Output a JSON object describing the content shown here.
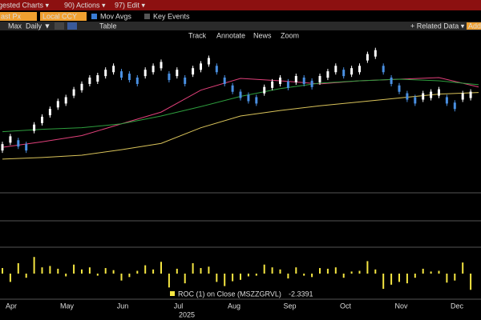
{
  "toolbar": {
    "items": [
      "gested Charts ▾",
      "90) Actions ▾",
      "97) Edit ▾"
    ]
  },
  "options": {
    "field": "ast Px",
    "currency": "Local CCY",
    "mov_avgs": "Mov Avgs",
    "key_events": "Key Events"
  },
  "controls": {
    "range": "Max",
    "period": "Daily ▼",
    "table": "Table",
    "related": "+ Related Data ▾",
    "add": "Add"
  },
  "tools": [
    "Track",
    "Annotate",
    "News",
    "Zoom"
  ],
  "chart_data": {
    "type": "candlestick",
    "x_labels": [
      "Apr",
      "May",
      "Jun",
      "Jul",
      "Aug",
      "Sep",
      "Oct",
      "Nov",
      "Dec"
    ],
    "year": "2025",
    "xlim": [
      0,
      60
    ],
    "ylim": [
      0,
      190
    ],
    "close": {
      "up_color": "#ffffff",
      "down_color": "#4a90e2",
      "values": [
        55,
        65,
        60,
        55,
        80,
        90,
        100,
        110,
        115,
        125,
        132,
        140,
        143,
        150,
        155,
        148,
        145,
        140,
        150,
        155,
        160,
        145,
        150,
        140,
        152,
        158,
        165,
        155,
        140,
        130,
        122,
        118,
        115,
        128,
        135,
        140,
        135,
        142,
        140,
        136,
        142,
        148,
        155,
        150,
        152,
        155,
        170,
        175,
        155,
        140,
        130,
        120,
        115,
        120,
        122,
        125,
        115,
        108,
        120,
        122
      ]
    },
    "moving_averages": {
      "x": [
        0,
        5,
        10,
        15,
        20,
        25,
        30,
        35,
        40,
        45,
        50,
        55,
        60
      ],
      "series": [
        {
          "color": "#e0407a",
          "values": [
            55,
            62,
            70,
            85,
            100,
            128,
            143,
            140,
            136,
            140,
            142,
            144,
            132
          ]
        },
        {
          "color": "#2e9e3e",
          "values": [
            75,
            78,
            80,
            85,
            95,
            107,
            120,
            130,
            137,
            140,
            142,
            140,
            135
          ]
        },
        {
          "color": "#d9c35a",
          "values": [
            40,
            42,
            45,
            52,
            60,
            80,
            95,
            102,
            108,
            113,
            118,
            123,
            125
          ]
        }
      ]
    },
    "roc": {
      "label": "ROC (1) on Close (MSZZGRVL)",
      "color": "#f5e642",
      "ylim": [
        -3,
        3
      ],
      "values": [
        0.8,
        -1.2,
        1.5,
        -0.6,
        2.4,
        0.9,
        1.1,
        0.7,
        -0.4,
        1.3,
        0.6,
        0.9,
        -0.3,
        0.8,
        0.5,
        -1.0,
        -0.5,
        0.4,
        1.2,
        0.6,
        1.7,
        -2.0,
        0.7,
        -1.4,
        1.5,
        0.8,
        1.0,
        -1.2,
        -1.8,
        -1.1,
        -0.9,
        -0.4,
        -0.3,
        1.3,
        0.9,
        0.6,
        -0.7,
        0.9,
        -0.3,
        -0.5,
        0.8,
        0.7,
        0.9,
        -0.6,
        0.3,
        0.4,
        1.8,
        0.6,
        -2.2,
        -1.6,
        -1.2,
        -1.4,
        -0.6,
        0.7,
        0.3,
        0.4,
        -1.3,
        -1.0,
        1.6,
        -2.3391
      ]
    }
  }
}
